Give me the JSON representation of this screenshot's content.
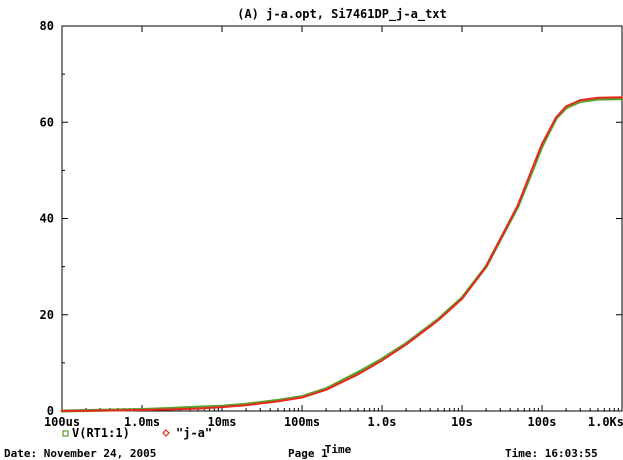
{
  "chart_data": {
    "type": "line",
    "title": "(A) j-a.opt, Si7461DP_j-a_txt",
    "xlabel": "Time",
    "ylabel": "",
    "x_scale": "log",
    "xlim": [
      "100us",
      "1.0Ks"
    ],
    "ylim": [
      0,
      80
    ],
    "x_ticks": [
      "100us",
      "1.0ms",
      "10ms",
      "100ms",
      "1.0s",
      "10s",
      "100s",
      "1.0Ks"
    ],
    "y_ticks": [
      "0",
      "20",
      "40",
      "60",
      "80"
    ],
    "grid": false,
    "legend_placement": "bottom-left",
    "series": [
      {
        "name": "V(RT1:1)",
        "color": "#5aa02c",
        "marker": "square",
        "x_seconds": [
          0.0001,
          0.001,
          0.002,
          0.005,
          0.01,
          0.02,
          0.05,
          0.1,
          0.2,
          0.5,
          1,
          2,
          5,
          10,
          20,
          50,
          70,
          100,
          150,
          200,
          300,
          500,
          1000
        ],
        "y": [
          0,
          0.3,
          0.5,
          0.8,
          1.0,
          1.4,
          2.2,
          3.0,
          4.6,
          8.0,
          10.8,
          14.0,
          19.0,
          23.5,
          30.0,
          42.5,
          48.5,
          55.0,
          60.8,
          63.0,
          64.3,
          64.8,
          64.9
        ]
      },
      {
        "name": "\"j-a\"",
        "color": "#e8281e",
        "marker": "diamond",
        "x_seconds": [
          0.0001,
          0.001,
          0.002,
          0.005,
          0.01,
          0.02,
          0.05,
          0.1,
          0.2,
          0.5,
          1,
          2,
          5,
          10,
          20,
          50,
          70,
          100,
          150,
          200,
          300,
          500,
          1000
        ],
        "y": [
          0,
          0.2,
          0.3,
          0.5,
          0.8,
          1.2,
          2.0,
          2.8,
          4.4,
          7.6,
          10.5,
          13.8,
          18.8,
          23.3,
          30.0,
          42.8,
          49.0,
          55.5,
          61.0,
          63.3,
          64.6,
          65.1,
          65.2
        ]
      }
    ]
  },
  "footer": {
    "date": "Date: November 24, 2005",
    "page": "Page 1",
    "time": "Time: 16:03:55"
  }
}
